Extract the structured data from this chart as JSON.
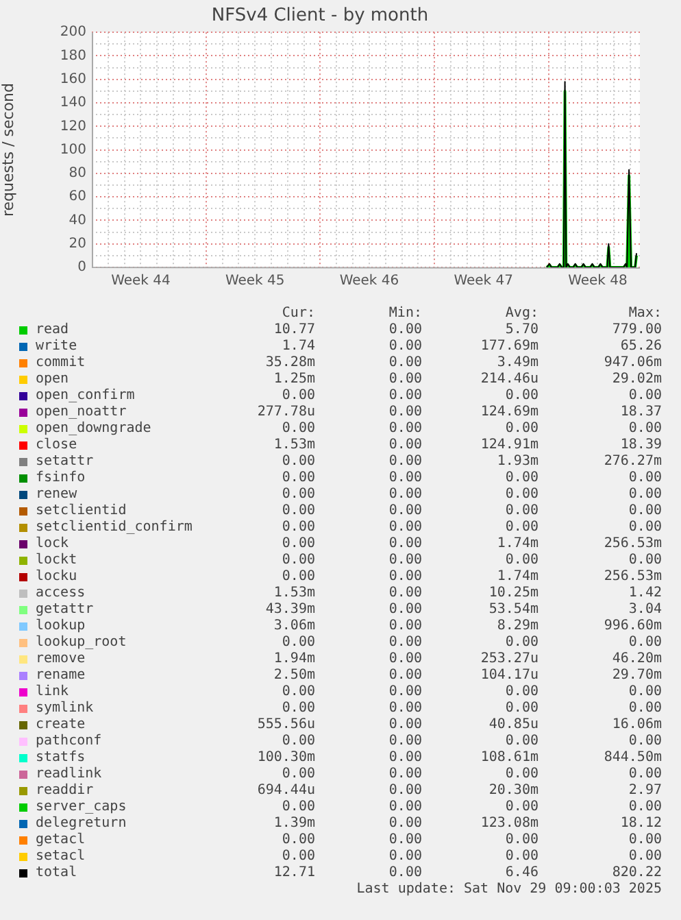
{
  "chart_data": {
    "type": "line",
    "title": "NFSv4 Client - by month",
    "ylabel": "requests / second",
    "x": [
      "2025-11-23T21:00",
      "2025-11-24T01:00",
      "2025-11-24T04:00",
      "2025-11-24T13:00",
      "2025-11-24T16:00",
      "2025-11-24T19:00",
      "2025-11-24T22:00",
      "2025-11-24T23:45",
      "2025-11-25T01:30",
      "2025-11-25T04:00",
      "2025-11-25T07:00",
      "2025-11-25T12:00",
      "2025-11-25T15:00",
      "2025-11-25T18:00",
      "2025-11-26T00:00",
      "2025-11-26T03:00",
      "2025-11-26T06:00",
      "2025-11-26T13:00",
      "2025-11-26T16:00",
      "2025-11-26T19:00",
      "2025-11-27T01:00",
      "2025-11-27T04:00",
      "2025-11-27T07:00",
      "2025-11-27T14:00",
      "2025-11-27T16:00",
      "2025-11-27T18:00",
      "2025-11-28T14:00",
      "2025-11-28T17:00",
      "2025-11-28T19:00",
      "2025-11-28T22:00",
      "2025-11-29T01:00",
      "2025-11-29T07:00",
      "2025-11-29T09:00"
    ],
    "xlim": [
      "2025-10-27T00:00",
      "2025-11-29T14:00"
    ],
    "xticks": [
      {
        "value": "2025-10-28T00:00",
        "label": null
      },
      {
        "value": "2025-10-29T00:00",
        "label": null
      },
      {
        "value": "2025-10-30T00:00",
        "label": "Week 44"
      },
      {
        "value": "2025-10-31T00:00",
        "label": null
      },
      {
        "value": "2025-11-01T00:00",
        "label": null
      },
      {
        "value": "2025-11-02T00:00",
        "label": null
      },
      {
        "value": "2025-11-03T00:00",
        "label": null
      },
      {
        "value": "2025-11-04T00:00",
        "label": null
      },
      {
        "value": "2025-11-05T00:00",
        "label": null
      },
      {
        "value": "2025-11-06T00:00",
        "label": "Week 45"
      },
      {
        "value": "2025-11-07T00:00",
        "label": null
      },
      {
        "value": "2025-11-08T00:00",
        "label": null
      },
      {
        "value": "2025-11-09T00:00",
        "label": null
      },
      {
        "value": "2025-11-10T00:00",
        "label": null
      },
      {
        "value": "2025-11-11T00:00",
        "label": null
      },
      {
        "value": "2025-11-12T00:00",
        "label": null
      },
      {
        "value": "2025-11-13T00:00",
        "label": "Week 46"
      },
      {
        "value": "2025-11-14T00:00",
        "label": null
      },
      {
        "value": "2025-11-15T00:00",
        "label": null
      },
      {
        "value": "2025-11-16T00:00",
        "label": null
      },
      {
        "value": "2025-11-17T00:00",
        "label": null
      },
      {
        "value": "2025-11-18T00:00",
        "label": null
      },
      {
        "value": "2025-11-19T00:00",
        "label": null
      },
      {
        "value": "2025-11-20T00:00",
        "label": "Week 47"
      },
      {
        "value": "2025-11-21T00:00",
        "label": null
      },
      {
        "value": "2025-11-22T00:00",
        "label": null
      },
      {
        "value": "2025-11-23T00:00",
        "label": null
      },
      {
        "value": "2025-11-24T00:00",
        "label": null
      },
      {
        "value": "2025-11-25T00:00",
        "label": null
      },
      {
        "value": "2025-11-26T00:00",
        "label": null
      },
      {
        "value": "2025-11-27T00:00",
        "label": "Week 48"
      },
      {
        "value": "2025-11-28T00:00",
        "label": null
      },
      {
        "value": "2025-11-29T00:00",
        "label": null
      }
    ],
    "ylim": [
      0,
      200
    ],
    "yticks": [
      0,
      {
        "value": 10,
        "label": null
      },
      20,
      {
        "value": 30,
        "label": null
      },
      40,
      {
        "value": 50,
        "label": null
      },
      60,
      {
        "value": 70,
        "label": null
      },
      80,
      {
        "value": 90,
        "label": null
      },
      100,
      {
        "value": 110,
        "label": null
      },
      120,
      {
        "value": 130,
        "label": null
      },
      140,
      {
        "value": 150,
        "label": null
      },
      160,
      {
        "value": 170,
        "label": null
      },
      180,
      {
        "value": 190,
        "label": null
      },
      200
    ],
    "grid": true,
    "legend": "bottom",
    "marker": "none",
    "line_style": "solid",
    "series": [
      {
        "name": "read",
        "type": "area",
        "color": "#00cc00",
        "values": [
          0,
          2,
          0,
          0,
          2,
          0,
          0,
          150,
          0,
          2,
          0,
          0,
          2,
          0,
          0,
          2,
          0,
          0,
          2,
          0,
          0,
          2,
          0,
          0,
          17,
          0,
          0,
          2,
          0,
          78,
          0,
          0,
          10
        ]
      },
      {
        "name": "write",
        "color": "#0066b3",
        "values": [
          null,
          null,
          null,
          null,
          null,
          null,
          null,
          null,
          null,
          null,
          null,
          null,
          null,
          null,
          null,
          null,
          null,
          null,
          null,
          null,
          null,
          null,
          null,
          null,
          null,
          null,
          null,
          null,
          null,
          null,
          null,
          null,
          null
        ]
      },
      {
        "name": "commit",
        "color": "#ff8000",
        "values": [
          null,
          null,
          null,
          null,
          null,
          null,
          null,
          null,
          null,
          null,
          null,
          null,
          null,
          null,
          null,
          null,
          null,
          null,
          null,
          null,
          null,
          null,
          null,
          null,
          null,
          null,
          null,
          null,
          null,
          null,
          null,
          null,
          null
        ]
      },
      {
        "name": "open",
        "color": "#ffcc00",
        "values": [
          null,
          null,
          null,
          null,
          null,
          null,
          null,
          null,
          null,
          null,
          null,
          null,
          null,
          null,
          null,
          null,
          null,
          null,
          null,
          null,
          null,
          null,
          null,
          null,
          null,
          null,
          null,
          null,
          null,
          null,
          null,
          null,
          null
        ]
      },
      {
        "name": "open_confirm",
        "color": "#330099",
        "values": [
          null,
          null,
          null,
          null,
          null,
          null,
          null,
          null,
          null,
          null,
          null,
          null,
          null,
          null,
          null,
          null,
          null,
          null,
          null,
          null,
          null,
          null,
          null,
          null,
          null,
          null,
          null,
          null,
          null,
          null,
          null,
          null,
          null
        ]
      },
      {
        "name": "open_noattr",
        "color": "#990099",
        "values": [
          null,
          null,
          null,
          null,
          null,
          null,
          null,
          null,
          null,
          null,
          null,
          null,
          null,
          null,
          null,
          null,
          null,
          null,
          null,
          null,
          null,
          null,
          null,
          null,
          null,
          null,
          null,
          null,
          null,
          null,
          null,
          null,
          null
        ]
      },
      {
        "name": "open_downgrade",
        "color": "#ccff00",
        "values": [
          null,
          null,
          null,
          null,
          null,
          null,
          null,
          null,
          null,
          null,
          null,
          null,
          null,
          null,
          null,
          null,
          null,
          null,
          null,
          null,
          null,
          null,
          null,
          null,
          null,
          null,
          null,
          null,
          null,
          null,
          null,
          null,
          null
        ]
      },
      {
        "name": "close",
        "color": "#ff0000",
        "values": [
          null,
          null,
          null,
          null,
          null,
          null,
          null,
          null,
          null,
          null,
          null,
          null,
          null,
          null,
          null,
          null,
          null,
          null,
          null,
          null,
          null,
          null,
          null,
          null,
          null,
          null,
          null,
          null,
          null,
          null,
          null,
          null,
          null
        ]
      },
      {
        "name": "setattr",
        "color": "#808080",
        "values": [
          null,
          null,
          null,
          null,
          null,
          null,
          null,
          null,
          null,
          null,
          null,
          null,
          null,
          null,
          null,
          null,
          null,
          null,
          null,
          null,
          null,
          null,
          null,
          null,
          null,
          null,
          null,
          null,
          null,
          null,
          null,
          null,
          null
        ]
      },
      {
        "name": "fsinfo",
        "color": "#008f00",
        "values": [
          null,
          null,
          null,
          null,
          null,
          null,
          null,
          null,
          null,
          null,
          null,
          null,
          null,
          null,
          null,
          null,
          null,
          null,
          null,
          null,
          null,
          null,
          null,
          null,
          null,
          null,
          null,
          null,
          null,
          null,
          null,
          null,
          null
        ]
      },
      {
        "name": "renew",
        "color": "#00487d",
        "values": [
          null,
          null,
          null,
          null,
          null,
          null,
          null,
          null,
          null,
          null,
          null,
          null,
          null,
          null,
          null,
          null,
          null,
          null,
          null,
          null,
          null,
          null,
          null,
          null,
          null,
          null,
          null,
          null,
          null,
          null,
          null,
          null,
          null
        ]
      },
      {
        "name": "setclientid",
        "color": "#b35a00",
        "values": [
          null,
          null,
          null,
          null,
          null,
          null,
          null,
          null,
          null,
          null,
          null,
          null,
          null,
          null,
          null,
          null,
          null,
          null,
          null,
          null,
          null,
          null,
          null,
          null,
          null,
          null,
          null,
          null,
          null,
          null,
          null,
          null,
          null
        ]
      },
      {
        "name": "setclientid_confirm",
        "color": "#b38f00",
        "values": [
          null,
          null,
          null,
          null,
          null,
          null,
          null,
          null,
          null,
          null,
          null,
          null,
          null,
          null,
          null,
          null,
          null,
          null,
          null,
          null,
          null,
          null,
          null,
          null,
          null,
          null,
          null,
          null,
          null,
          null,
          null,
          null,
          null
        ]
      },
      {
        "name": "lock",
        "color": "#6b006b",
        "values": [
          null,
          null,
          null,
          null,
          null,
          null,
          null,
          null,
          null,
          null,
          null,
          null,
          null,
          null,
          null,
          null,
          null,
          null,
          null,
          null,
          null,
          null,
          null,
          null,
          null,
          null,
          null,
          null,
          null,
          null,
          null,
          null,
          null
        ]
      },
      {
        "name": "lockt",
        "color": "#8fb300",
        "values": [
          null,
          null,
          null,
          null,
          null,
          null,
          null,
          null,
          null,
          null,
          null,
          null,
          null,
          null,
          null,
          null,
          null,
          null,
          null,
          null,
          null,
          null,
          null,
          null,
          null,
          null,
          null,
          null,
          null,
          null,
          null,
          null,
          null
        ]
      },
      {
        "name": "locku",
        "color": "#b30000",
        "values": [
          null,
          null,
          null,
          null,
          null,
          null,
          null,
          null,
          null,
          null,
          null,
          null,
          null,
          null,
          null,
          null,
          null,
          null,
          null,
          null,
          null,
          null,
          null,
          null,
          null,
          null,
          null,
          null,
          null,
          null,
          null,
          null,
          null
        ]
      },
      {
        "name": "access",
        "color": "#bebebe",
        "values": [
          null,
          null,
          null,
          null,
          null,
          null,
          null,
          null,
          null,
          null,
          null,
          null,
          null,
          null,
          null,
          null,
          null,
          null,
          null,
          null,
          null,
          null,
          null,
          null,
          null,
          null,
          null,
          null,
          null,
          null,
          null,
          null,
          null
        ]
      },
      {
        "name": "getattr",
        "color": "#80ff80",
        "values": [
          null,
          null,
          null,
          null,
          null,
          null,
          null,
          null,
          null,
          null,
          null,
          null,
          null,
          null,
          null,
          null,
          null,
          null,
          null,
          null,
          null,
          null,
          null,
          null,
          null,
          null,
          null,
          null,
          null,
          null,
          null,
          null,
          null
        ]
      },
      {
        "name": "lookup",
        "color": "#80c9ff",
        "values": [
          null,
          null,
          null,
          null,
          null,
          null,
          null,
          null,
          null,
          null,
          null,
          null,
          null,
          null,
          null,
          null,
          null,
          null,
          null,
          null,
          null,
          null,
          null,
          null,
          null,
          null,
          null,
          null,
          null,
          null,
          null,
          null,
          null
        ]
      },
      {
        "name": "lookup_root",
        "color": "#ffc080",
        "values": [
          null,
          null,
          null,
          null,
          null,
          null,
          null,
          null,
          null,
          null,
          null,
          null,
          null,
          null,
          null,
          null,
          null,
          null,
          null,
          null,
          null,
          null,
          null,
          null,
          null,
          null,
          null,
          null,
          null,
          null,
          null,
          null,
          null
        ]
      },
      {
        "name": "remove",
        "color": "#ffe680",
        "values": [
          null,
          null,
          null,
          null,
          null,
          null,
          null,
          null,
          null,
          null,
          null,
          null,
          null,
          null,
          null,
          null,
          null,
          null,
          null,
          null,
          null,
          null,
          null,
          null,
          null,
          null,
          null,
          null,
          null,
          null,
          null,
          null,
          null
        ]
      },
      {
        "name": "rename",
        "color": "#aa80ff",
        "values": [
          null,
          null,
          null,
          null,
          null,
          null,
          null,
          null,
          null,
          null,
          null,
          null,
          null,
          null,
          null,
          null,
          null,
          null,
          null,
          null,
          null,
          null,
          null,
          null,
          null,
          null,
          null,
          null,
          null,
          null,
          null,
          null,
          null
        ]
      },
      {
        "name": "link",
        "color": "#ee00cc",
        "values": [
          null,
          null,
          null,
          null,
          null,
          null,
          null,
          null,
          null,
          null,
          null,
          null,
          null,
          null,
          null,
          null,
          null,
          null,
          null,
          null,
          null,
          null,
          null,
          null,
          null,
          null,
          null,
          null,
          null,
          null,
          null,
          null,
          null
        ]
      },
      {
        "name": "symlink",
        "color": "#ff8080",
        "values": [
          null,
          null,
          null,
          null,
          null,
          null,
          null,
          null,
          null,
          null,
          null,
          null,
          null,
          null,
          null,
          null,
          null,
          null,
          null,
          null,
          null,
          null,
          null,
          null,
          null,
          null,
          null,
          null,
          null,
          null,
          null,
          null,
          null
        ]
      },
      {
        "name": "create",
        "color": "#666600",
        "values": [
          null,
          null,
          null,
          null,
          null,
          null,
          null,
          null,
          null,
          null,
          null,
          null,
          null,
          null,
          null,
          null,
          null,
          null,
          null,
          null,
          null,
          null,
          null,
          null,
          null,
          null,
          null,
          null,
          null,
          null,
          null,
          null,
          null
        ]
      },
      {
        "name": "pathconf",
        "color": "#ffbfff",
        "values": [
          null,
          null,
          null,
          null,
          null,
          null,
          null,
          null,
          null,
          null,
          null,
          null,
          null,
          null,
          null,
          null,
          null,
          null,
          null,
          null,
          null,
          null,
          null,
          null,
          null,
          null,
          null,
          null,
          null,
          null,
          null,
          null,
          null
        ]
      },
      {
        "name": "statfs",
        "color": "#00ffcc",
        "values": [
          null,
          null,
          null,
          null,
          null,
          null,
          null,
          null,
          null,
          null,
          null,
          null,
          null,
          null,
          null,
          null,
          null,
          null,
          null,
          null,
          null,
          null,
          null,
          null,
          null,
          null,
          null,
          null,
          null,
          null,
          null,
          null,
          null
        ]
      },
      {
        "name": "readlink",
        "color": "#cc6699",
        "values": [
          null,
          null,
          null,
          null,
          null,
          null,
          null,
          null,
          null,
          null,
          null,
          null,
          null,
          null,
          null,
          null,
          null,
          null,
          null,
          null,
          null,
          null,
          null,
          null,
          null,
          null,
          null,
          null,
          null,
          null,
          null,
          null,
          null
        ]
      },
      {
        "name": "readdir",
        "color": "#999900",
        "values": [
          null,
          null,
          null,
          null,
          null,
          null,
          null,
          null,
          null,
          null,
          null,
          null,
          null,
          null,
          null,
          null,
          null,
          null,
          null,
          null,
          null,
          null,
          null,
          null,
          null,
          null,
          null,
          null,
          null,
          null,
          null,
          null,
          null
        ]
      },
      {
        "name": "server_caps",
        "color": "#00cc00",
        "values": [
          null,
          null,
          null,
          null,
          null,
          null,
          null,
          null,
          null,
          null,
          null,
          null,
          null,
          null,
          null,
          null,
          null,
          null,
          null,
          null,
          null,
          null,
          null,
          null,
          null,
          null,
          null,
          null,
          null,
          null,
          null,
          null,
          null
        ]
      },
      {
        "name": "delegreturn",
        "color": "#0066b3",
        "values": [
          null,
          null,
          null,
          null,
          null,
          null,
          null,
          null,
          null,
          null,
          null,
          null,
          null,
          null,
          null,
          null,
          null,
          null,
          null,
          null,
          null,
          null,
          null,
          null,
          null,
          null,
          null,
          null,
          null,
          null,
          null,
          null,
          null
        ]
      },
      {
        "name": "getacl",
        "color": "#ff8000",
        "values": [
          null,
          null,
          null,
          null,
          null,
          null,
          null,
          null,
          null,
          null,
          null,
          null,
          null,
          null,
          null,
          null,
          null,
          null,
          null,
          null,
          null,
          null,
          null,
          null,
          null,
          null,
          null,
          null,
          null,
          null,
          null,
          null,
          null
        ]
      },
      {
        "name": "setacl",
        "color": "#ffcc00",
        "values": [
          null,
          null,
          null,
          null,
          null,
          null,
          null,
          null,
          null,
          null,
          null,
          null,
          null,
          null,
          null,
          null,
          null,
          null,
          null,
          null,
          null,
          null,
          null,
          null,
          null,
          null,
          null,
          null,
          null,
          null,
          null,
          null,
          null
        ]
      },
      {
        "name": "total",
        "color": "#000000",
        "values": [
          0,
          3,
          0,
          0,
          3,
          0,
          0,
          158,
          0,
          3,
          0,
          0,
          3,
          0,
          0,
          3,
          0,
          0,
          3,
          0,
          0,
          3,
          0,
          0,
          20,
          0,
          0,
          3,
          0,
          83,
          0,
          0,
          12
        ]
      }
    ],
    "annotations": [
      "Cur:",
      "Min:",
      "Avg:",
      "Max:",
      "10.77",
      "0.00",
      "5.70",
      "779.00",
      "1.74",
      "0.00",
      "177.69m",
      "65.26",
      "35.28m",
      "0.00",
      "3.49m",
      "947.06m",
      "1.25m",
      "0.00",
      "214.46u",
      "29.02m",
      "0.00",
      "0.00",
      "0.00",
      "0.00",
      "277.78u",
      "0.00",
      "124.69m",
      "18.37",
      "0.00",
      "0.00",
      "0.00",
      "0.00",
      "1.53m",
      "0.00",
      "124.91m",
      "18.39",
      "0.00",
      "0.00",
      "1.93m",
      "276.27m",
      "0.00",
      "0.00",
      "0.00",
      "0.00",
      "0.00",
      "0.00",
      "0.00",
      "0.00",
      "0.00",
      "0.00",
      "0.00",
      "0.00",
      "0.00",
      "0.00",
      "0.00",
      "0.00",
      "0.00",
      "0.00",
      "1.74m",
      "256.53m",
      "0.00",
      "0.00",
      "0.00",
      "0.00",
      "0.00",
      "0.00",
      "1.74m",
      "256.53m",
      "1.53m",
      "0.00",
      "10.25m",
      "1.42",
      "43.39m",
      "0.00",
      "53.54m",
      "3.04",
      "3.06m",
      "0.00",
      "8.29m",
      "996.60m",
      "0.00",
      "0.00",
      "0.00",
      "0.00",
      "1.94m",
      "0.00",
      "253.27u",
      "46.20m",
      "2.50m",
      "0.00",
      "104.17u",
      "29.70m",
      "0.00",
      "0.00",
      "0.00",
      "0.00",
      "0.00",
      "0.00",
      "0.00",
      "0.00",
      "555.56u",
      "0.00",
      "40.85u",
      "16.06m",
      "0.00",
      "0.00",
      "0.00",
      "0.00",
      "100.30m",
      "0.00",
      "108.61m",
      "844.50m",
      "0.00",
      "0.00",
      "0.00",
      "0.00",
      "694.44u",
      "0.00",
      "20.30m",
      "2.97",
      "0.00",
      "0.00",
      "0.00",
      "0.00",
      "1.39m",
      "0.00",
      "123.08m",
      "18.12",
      "0.00",
      "0.00",
      "0.00",
      "0.00",
      "0.00",
      "0.00",
      "0.00",
      "0.00",
      "12.71",
      "0.00",
      "6.46",
      "820.22",
      "Last update: Sat Nov 29 09:00:03 2025"
    ]
  }
}
